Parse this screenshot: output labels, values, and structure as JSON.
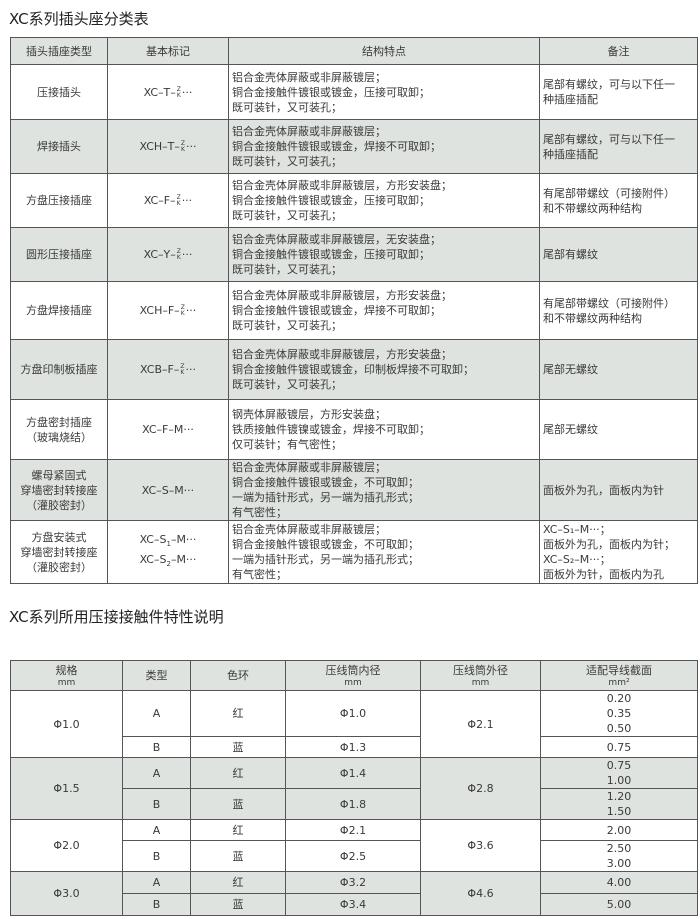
{
  "table1": {
    "title": "XC系列插头座分类表",
    "headers": [
      "插头插座类型",
      "基本标记",
      "结构特点",
      "备注"
    ],
    "rows": [
      {
        "type": [
          "压接插头"
        ],
        "mark": [
          {
            "pre": "XC–T–",
            "top": "Z",
            "bot": "K",
            "post": "···"
          }
        ],
        "features": [
          "铝合金壳体屏蔽或非屏蔽镀层；",
          "铜合金接触件镀银或镀金，压接可取卸；",
          "既可装针，又可装孔；"
        ],
        "notes": [
          "尾部有螺纹，可与以下任一",
          "种插座插配"
        ]
      },
      {
        "type": [
          "焊接插头"
        ],
        "mark": [
          {
            "pre": "XCH–T–",
            "top": "Z",
            "bot": "K",
            "post": "···"
          }
        ],
        "features": [
          "铝合金壳体屏蔽或非屏蔽镀层；",
          "铜合金接触件镀银或镀金，焊接不可取卸；",
          "既可装针，又可装孔；"
        ],
        "notes": [
          "尾部有螺纹，可与以下任一",
          "种插座插配"
        ]
      },
      {
        "type": [
          "方盘压接插座"
        ],
        "mark": [
          {
            "pre": "XC–F–",
            "top": "Z",
            "bot": "K",
            "post": "···"
          }
        ],
        "features": [
          "铝合金壳体屏蔽或非屏蔽镀层，方形安装盘；",
          "铜合金接触件镀银或镀金，压接可取卸；",
          "既可装针，又可装孔；"
        ],
        "notes": [
          "有尾部带螺纹（可接附件）",
          "和不带螺纹两种结构"
        ]
      },
      {
        "type": [
          "圆形压接插座"
        ],
        "mark": [
          {
            "pre": "XC–Y–",
            "top": "Z",
            "bot": "K",
            "post": "···"
          }
        ],
        "features": [
          "铝合金壳体屏蔽或非屏蔽镀层，无安装盘；",
          "铜合金接触件镀银或镀金，压接可取卸；",
          "既可装针，又可装孔；"
        ],
        "notes": [
          "尾部有螺纹"
        ]
      },
      {
        "type": [
          "方盘焊接插座"
        ],
        "mark": [
          {
            "pre": "XCH–F–",
            "top": "Z",
            "bot": "K",
            "post": "···"
          }
        ],
        "features": [
          "铝合金壳体屏蔽或非屏蔽镀层，方形安装盘；",
          "铜合金接触件镀银或镀金，焊接不可取卸；",
          "既可装针，又可装孔；"
        ],
        "notes": [
          "有尾部带螺纹（可接附件）",
          "和不带螺纹两种结构"
        ]
      },
      {
        "type": [
          "方盘印制板插座"
        ],
        "mark": [
          {
            "pre": "XCB–F–",
            "top": "Z",
            "bot": "K",
            "post": "···"
          }
        ],
        "features": [
          "铝合金壳体屏蔽或非屏蔽镀层，方形安装盘；",
          "铜合金接触件镀银或镀金，印制板焊接不可取卸；",
          "既可装针，又可装孔；"
        ],
        "notes": [
          "尾部无螺纹"
        ]
      },
      {
        "type": [
          "方盘密封插座",
          "（玻璃烧结）"
        ],
        "mark": [
          {
            "pre": "XC–F–M···"
          }
        ],
        "features": [
          "钢壳体屏蔽镀层，方形安装盘；",
          "铁质接触件镀镍或镀金，焊接不可取卸；",
          "仅可装针；有气密性；"
        ],
        "notes": [
          "尾部无螺纹"
        ]
      },
      {
        "type": [
          "螺母紧固式",
          "穿墙密封转接座",
          "（灌胶密封）"
        ],
        "mark": [
          {
            "pre": "XC–S–M···"
          }
        ],
        "features": [
          "铝合金壳体屏蔽或非屏蔽镀层；",
          "铜合金接触件镀银或镀金，不可取卸；",
          "一端为插针形式，另一端为插孔形式；",
          "有气密性；"
        ],
        "notes": [
          "面板外为孔，面板内为针"
        ]
      },
      {
        "type": [
          "方盘安装式",
          "穿墙密封转接座",
          "（灌胶密封）"
        ],
        "mark": [
          {
            "pre": "XC–S",
            "sub": "1",
            "post": "–M···"
          },
          {
            "pre": "XC–S",
            "sub": "2",
            "post": "–M···"
          }
        ],
        "features": [
          "铝合金壳体屏蔽或非屏蔽镀层；",
          "铜合金接触件镀银或镀金，不可取卸；",
          "一端为插针形式，另一端为插孔形式；",
          "有气密性；"
        ],
        "notes": [
          "XC–S₁–M···；",
          "面板外为孔，面板内为针；",
          "XC–S₂–M···；",
          "面板外为针，面板内为孔"
        ]
      }
    ]
  },
  "table2": {
    "title": "XC系列所用压接接触件特性说明",
    "headers": [
      {
        "label": "规格",
        "unit": "mm"
      },
      {
        "label": "类型",
        "unit": ""
      },
      {
        "label": "色环",
        "unit": ""
      },
      {
        "label": "压线筒内径",
        "unit": "mm"
      },
      {
        "label": "压线筒外径",
        "unit": "mm"
      },
      {
        "label": "适配导线截面",
        "unit": "mm²"
      }
    ],
    "groups": [
      {
        "spec": "Φ1.0",
        "outer": "Φ2.1",
        "rows": [
          {
            "type": "A",
            "color": "红",
            "inner": "Φ1.0",
            "wire": [
              "0.20",
              "0.35",
              "0.50"
            ]
          },
          {
            "type": "B",
            "color": "蓝",
            "inner": "Φ1.3",
            "wire": [
              "0.75"
            ]
          }
        ]
      },
      {
        "spec": "Φ1.5",
        "outer": "Φ2.8",
        "rows": [
          {
            "type": "A",
            "color": "红",
            "inner": "Φ1.4",
            "wire": [
              "0.75",
              "1.00"
            ]
          },
          {
            "type": "B",
            "color": "蓝",
            "inner": "Φ1.8",
            "wire": [
              "1.20",
              "1.50"
            ]
          }
        ]
      },
      {
        "spec": "Φ2.0",
        "outer": "Φ3.6",
        "rows": [
          {
            "type": "A",
            "color": "红",
            "inner": "Φ2.1",
            "wire": [
              "2.00"
            ]
          },
          {
            "type": "B",
            "color": "蓝",
            "inner": "Φ2.5",
            "wire": [
              "2.50",
              "3.00"
            ]
          }
        ]
      },
      {
        "spec": "Φ3.0",
        "outer": "Φ4.6",
        "rows": [
          {
            "type": "A",
            "color": "红",
            "inner": "Φ3.2",
            "wire": [
              "4.00"
            ]
          },
          {
            "type": "B",
            "color": "蓝",
            "inner": "Φ3.4",
            "wire": [
              "5.00"
            ]
          }
        ]
      }
    ]
  }
}
